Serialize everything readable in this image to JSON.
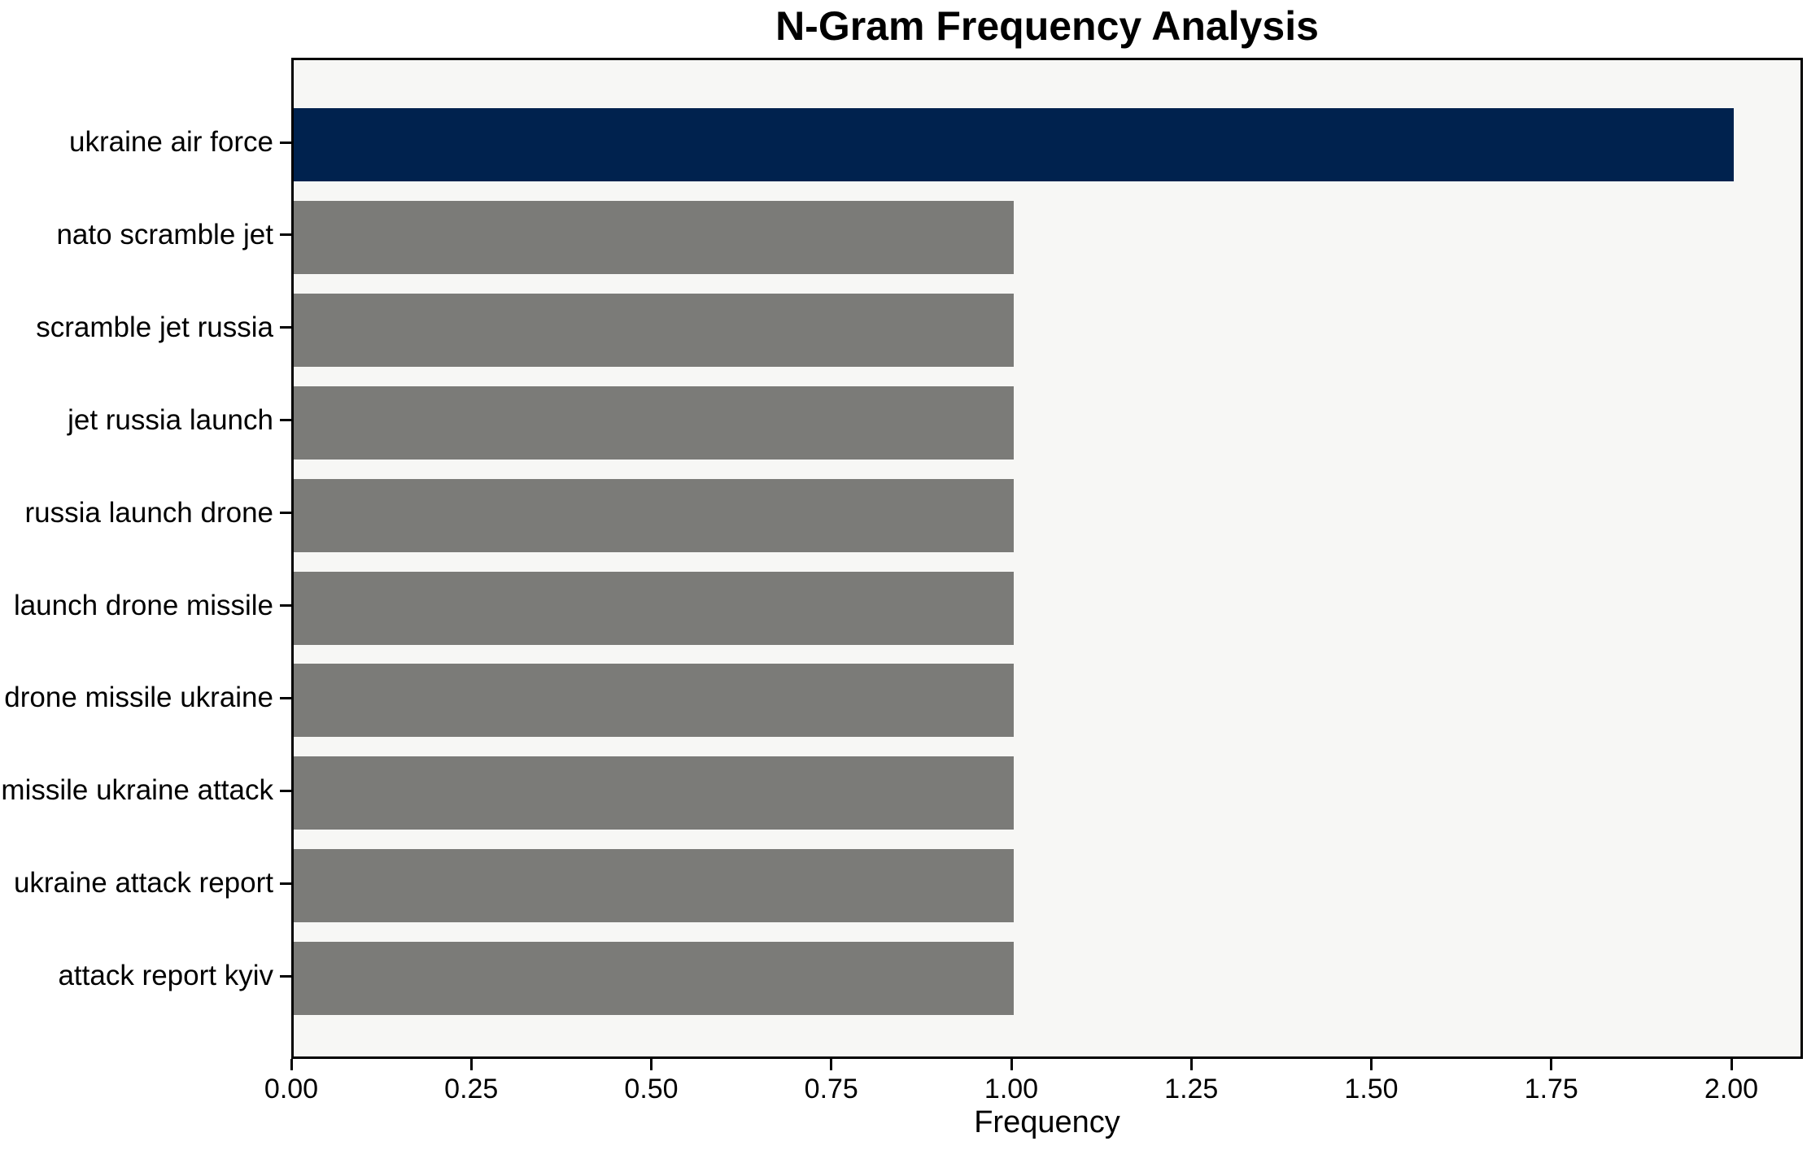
{
  "chart_data": {
    "type": "bar",
    "orientation": "horizontal",
    "title": "N-Gram Frequency Analysis",
    "xlabel": "Frequency",
    "ylabel": "",
    "categories": [
      "ukraine air force",
      "nato scramble jet",
      "scramble jet russia",
      "jet russia launch",
      "russia launch drone",
      "launch drone missile",
      "drone missile ukraine",
      "missile ukraine attack",
      "ukraine attack report",
      "attack report kyiv"
    ],
    "values": [
      2.0,
      1.0,
      1.0,
      1.0,
      1.0,
      1.0,
      1.0,
      1.0,
      1.0,
      1.0
    ],
    "bar_colors": [
      "#00224e",
      "#7b7b78",
      "#7b7b78",
      "#7b7b78",
      "#7b7b78",
      "#7b7b78",
      "#7b7b78",
      "#7b7b78",
      "#7b7b78",
      "#7b7b78"
    ],
    "xtick_values": [
      0.0,
      0.25,
      0.5,
      0.75,
      1.0,
      1.25,
      1.5,
      1.75,
      2.0
    ],
    "xtick_labels": [
      "0.00",
      "0.25",
      "0.50",
      "0.75",
      "1.00",
      "1.25",
      "1.50",
      "1.75",
      "2.00"
    ],
    "xlim": [
      0,
      2.1
    ],
    "grid": false,
    "legend": null,
    "colors": {
      "highlight_bar": "#00224e",
      "default_bar": "#7b7b78",
      "plot_background": "#f7f7f5",
      "figure_background": "#ffffff",
      "axis": "#000000",
      "text": "#000000"
    }
  }
}
